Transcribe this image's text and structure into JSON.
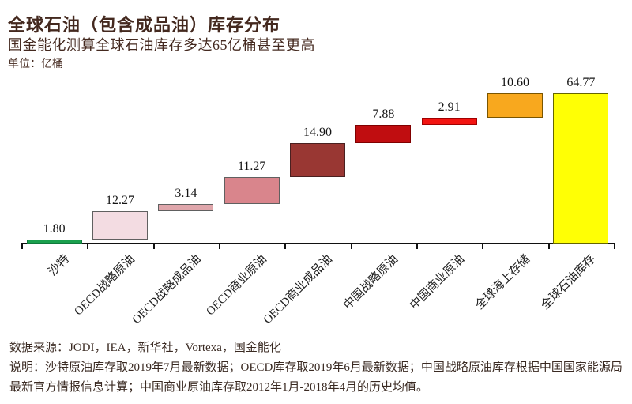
{
  "header": {
    "title": "全球石油（包含成品油）库存分布",
    "subtitle": "国金能化测算全球石油库存多达65亿桶甚至更高",
    "unit_label": "单位：亿桶"
  },
  "chart_data": {
    "type": "bar",
    "subtype": "waterfall",
    "title": "全球石油（包含成品油）库存分布",
    "subtitle": "国金能化测算全球石油库存多达65亿桶甚至更高",
    "unit": "亿桶",
    "categories": [
      "沙特",
      "OECD战略原油",
      "OECD战略成品油",
      "OECD商业原油",
      "OECD商业成品油",
      "中国战略原油",
      "中国商业原油",
      "全球海上存储",
      "全球石油库存"
    ],
    "values": [
      1.8,
      12.27,
      3.14,
      11.27,
      14.9,
      7.88,
      2.91,
      10.6,
      64.77
    ],
    "value_labels": [
      "1.80",
      "12.27",
      "3.14",
      "11.27",
      "14.90",
      "7.88",
      "2.91",
      "10.60",
      "64.77"
    ],
    "is_total": [
      false,
      false,
      false,
      false,
      false,
      false,
      false,
      false,
      true
    ],
    "bar_colors": [
      "#1aa04e",
      "#f3dce2",
      "#dfa6ab",
      "#d9858c",
      "#993733",
      "#c00d10",
      "#f21411",
      "#f8a81e",
      "#ffff05"
    ],
    "bar_border_colors": [
      "#0f7a3c",
      "#606060",
      "#606060",
      "#606060",
      "#4a2020",
      "#800000",
      "#a00000",
      "#7a5500",
      "#666600"
    ],
    "axis_color": "#111111",
    "ylim": [
      0,
      64.77
    ],
    "grid": false,
    "legend": "none",
    "xlabel": "",
    "ylabel": "亿桶"
  },
  "footer": {
    "source": "数据来源：JODI，IEA，新华社，Vortexa，国金能化",
    "note": "说明：沙特原油库存取2019年7月最新数据；OECD库存取2019年6月最新数据；中国战略原油库存根据中国国家能源局最新官方情报信息计算；中国商业原油库存取2012年1月-2018年4月的历史均值。"
  }
}
